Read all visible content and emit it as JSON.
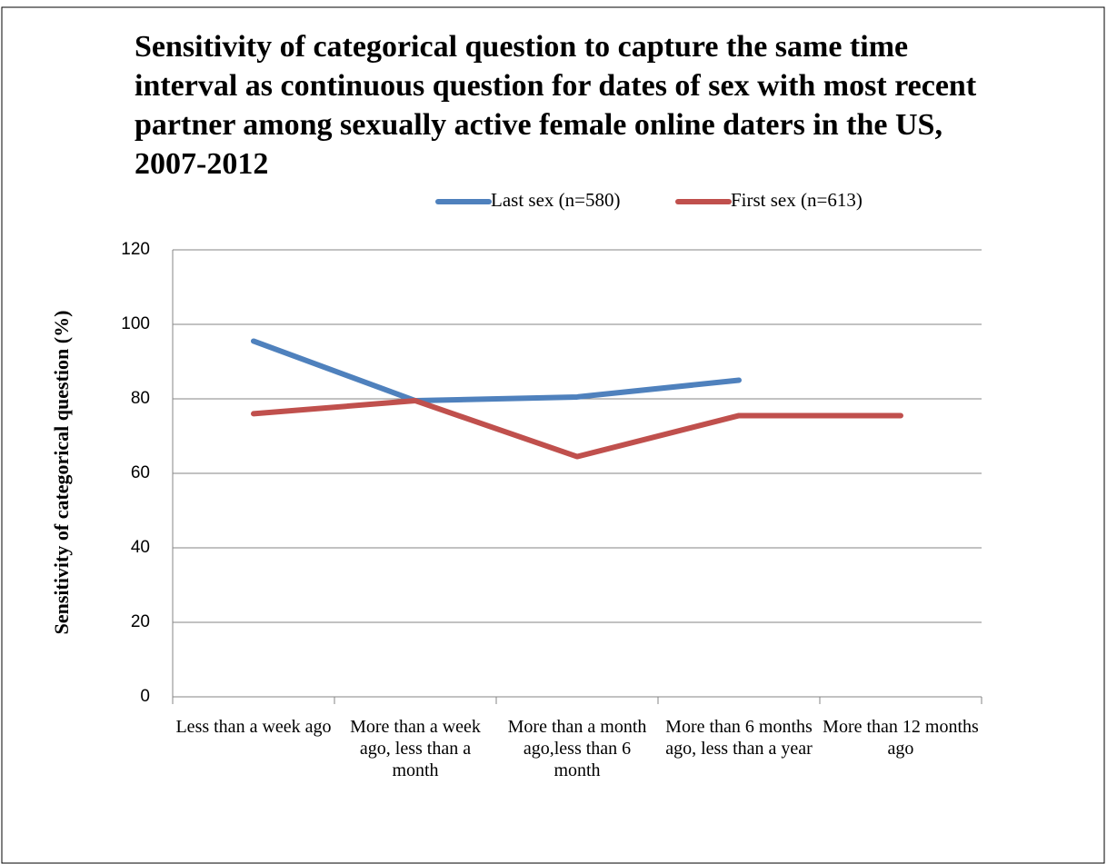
{
  "chart_data": {
    "type": "line",
    "title": "Sensitivity of categorical question to capture the same time interval as continuous question for dates of sex with most recent partner among sexually active female online daters in the US, 2007-2012",
    "y_label": "Sensitivity of categorical question (%)",
    "categories": [
      "Less than a week ago",
      "More than a week ago, less than a month",
      "More than a month ago,less than 6 month",
      "More than 6 months ago, less than a year",
      "More than 12 months ago"
    ],
    "series": [
      {
        "name": "Last sex (n=580)",
        "color": "#4f81bd",
        "values": [
          95.5,
          79.5,
          80.5,
          85,
          null
        ]
      },
      {
        "name": "First sex (n=613)",
        "color": "#c0504d",
        "values": [
          76,
          79.5,
          64.5,
          75.5,
          75.5
        ]
      }
    ],
    "ylim": [
      0,
      120
    ],
    "yticks": [
      0,
      20,
      40,
      60,
      80,
      100,
      120
    ],
    "grid": true,
    "legend": "top"
  }
}
